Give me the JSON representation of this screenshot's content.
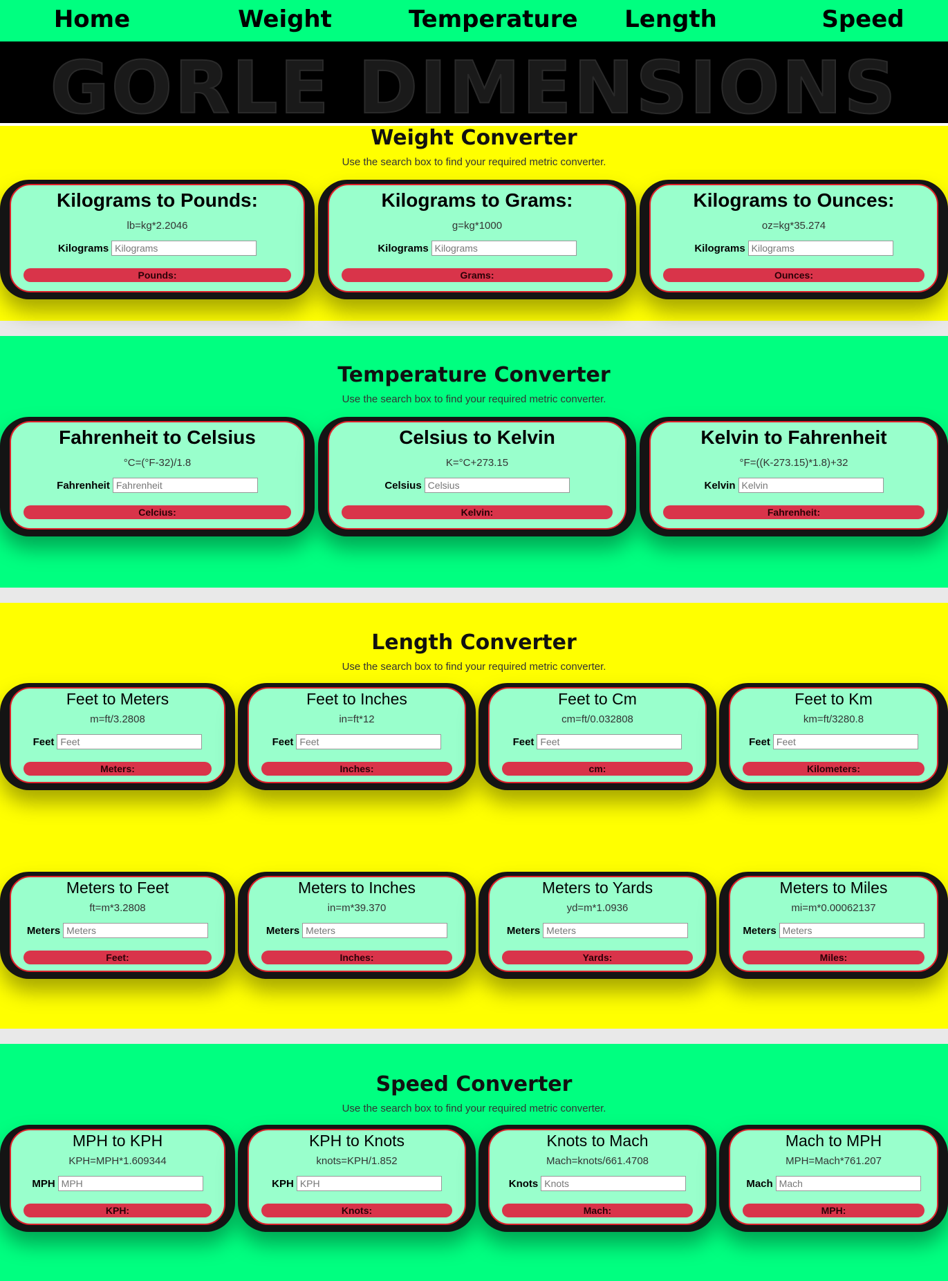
{
  "nav": [
    "Home",
    "Weight",
    "Temperature",
    "Length",
    "Speed"
  ],
  "banner": "GORLE DIMENSIONS",
  "colors": {
    "green": "#00ff80",
    "yellow": "#ffff00",
    "card_bg": "#99ffcc",
    "result_bar": "#d9344a"
  },
  "sections": [
    {
      "title": "Weight Converter",
      "subtitle": "Use the search box to find your required metric converter.",
      "cards": [
        {
          "title": "Kilograms to Pounds:",
          "formula": "lb=kg*2.2046",
          "label": "Kilograms",
          "placeholder": "Kilograms",
          "result": "Pounds:"
        },
        {
          "title": "Kilograms to Grams:",
          "formula": "g=kg*1000",
          "label": "Kilograms",
          "placeholder": "Kilograms",
          "result": "Grams:"
        },
        {
          "title": "Kilograms to Ounces:",
          "formula": "oz=kg*35.274",
          "label": "Kilograms",
          "placeholder": "Kilograms",
          "result": "Ounces:"
        }
      ]
    },
    {
      "title": "Temperature Converter",
      "subtitle": "Use the search box to find your required metric converter.",
      "cards": [
        {
          "title": "Fahrenheit to Celsius",
          "formula": "°C=(°F-32)/1.8",
          "label": "Fahrenheit",
          "placeholder": "Fahrenheit",
          "result": "Celcius:"
        },
        {
          "title": "Celsius to Kelvin",
          "formula": "K=°C+273.15",
          "label": "Celsius",
          "placeholder": "Celsius",
          "result": "Kelvin:"
        },
        {
          "title": "Kelvin to Fahrenheit",
          "formula": "°F=((K-273.15)*1.8)+32",
          "label": "Kelvin",
          "placeholder": "Kelvin",
          "result": "Fahrenheit:"
        }
      ]
    },
    {
      "title": "Length Converter",
      "subtitle": "Use the search box to find your required metric converter.",
      "cards": [
        {
          "title": "Feet to Meters",
          "formula": "m=ft/3.2808",
          "label": "Feet",
          "placeholder": "Feet",
          "result": "Meters:"
        },
        {
          "title": "Feet to Inches",
          "formula": "in=ft*12",
          "label": "Feet",
          "placeholder": "Feet",
          "result": "Inches:"
        },
        {
          "title": "Feet to Cm",
          "formula": "cm=ft/0.032808",
          "label": "Feet",
          "placeholder": "Feet",
          "result": "cm:"
        },
        {
          "title": "Feet to Km",
          "formula": "km=ft/3280.8",
          "label": "Feet",
          "placeholder": "Feet",
          "result": "Kilometers:"
        },
        {
          "title": "Meters to Feet",
          "formula": "ft=m*3.2808",
          "label": "Meters",
          "placeholder": "Meters",
          "result": "Feet:"
        },
        {
          "title": "Meters to Inches",
          "formula": "in=m*39.370",
          "label": "Meters",
          "placeholder": "Meters",
          "result": "Inches:"
        },
        {
          "title": "Meters to Yards",
          "formula": "yd=m*1.0936",
          "label": "Meters",
          "placeholder": "Meters",
          "result": "Yards:"
        },
        {
          "title": "Meters to Miles",
          "formula": "mi=m*0.00062137",
          "label": "Meters",
          "placeholder": "Meters",
          "result": "Miles:"
        }
      ]
    },
    {
      "title": "Speed Converter",
      "subtitle": "Use the search box to find your required metric converter.",
      "cards": [
        {
          "title": "MPH to KPH",
          "formula": "KPH=MPH*1.609344",
          "label": "MPH",
          "placeholder": "MPH",
          "result": "KPH:"
        },
        {
          "title": "KPH to Knots",
          "formula": "knots=KPH/1.852",
          "label": "KPH",
          "placeholder": "KPH",
          "result": "Knots:"
        },
        {
          "title": "Knots to Mach",
          "formula": "Mach=knots/661.4708",
          "label": "Knots",
          "placeholder": "Knots",
          "result": "Mach:"
        },
        {
          "title": "Mach to MPH",
          "formula": "MPH=Mach*761.207",
          "label": "Mach",
          "placeholder": "Mach",
          "result": "MPH:"
        }
      ]
    }
  ]
}
